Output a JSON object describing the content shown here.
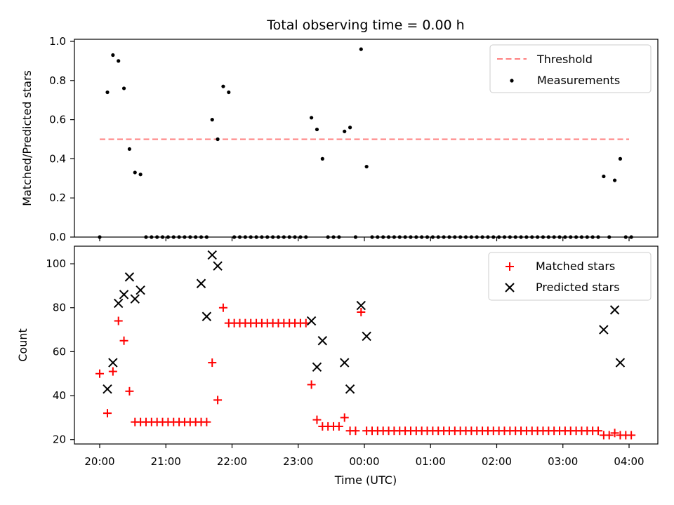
{
  "chart_data": [
    {
      "type": "scatter",
      "title": "Total observing time = 0.00 h",
      "xlabel": "",
      "ylabel": "Matched/Predicted stars",
      "ylim": [
        0,
        1.0
      ],
      "yticks": [
        "0.0",
        "0.2",
        "0.4",
        "0.6",
        "0.8",
        "1.0"
      ],
      "legend_position": "top-right",
      "threshold": {
        "name": "Threshold",
        "value": 0.5,
        "x_range": [
          "20:00",
          "04:00"
        ],
        "color": "#ff7f7f",
        "style": "dashed"
      },
      "series": [
        {
          "name": "Measurements",
          "color": "#000000",
          "x": [
            "20:00",
            "20:07",
            "20:12",
            "20:17",
            "20:22",
            "20:27",
            "20:32",
            "20:37",
            "20:42",
            "20:47",
            "20:52",
            "20:57",
            "21:02",
            "21:07",
            "21:12",
            "21:17",
            "21:22",
            "21:27",
            "21:32",
            "21:37",
            "21:42",
            "21:47",
            "21:52",
            "21:57",
            "22:02",
            "22:07",
            "22:12",
            "22:17",
            "22:22",
            "22:27",
            "22:32",
            "22:37",
            "22:42",
            "22:47",
            "22:52",
            "22:57",
            "23:02",
            "23:07",
            "23:12",
            "23:17",
            "23:22",
            "23:27",
            "23:32",
            "23:37",
            "23:42",
            "23:47",
            "23:52",
            "23:57",
            "00:02",
            "00:07",
            "00:12",
            "00:17",
            "00:22",
            "00:27",
            "00:32",
            "00:37",
            "00:42",
            "00:47",
            "00:52",
            "00:57",
            "01:02",
            "01:07",
            "01:12",
            "01:17",
            "01:22",
            "01:27",
            "01:32",
            "01:37",
            "01:42",
            "01:47",
            "01:52",
            "01:57",
            "02:02",
            "02:07",
            "02:12",
            "02:17",
            "02:22",
            "02:27",
            "02:32",
            "02:37",
            "02:42",
            "02:47",
            "02:52",
            "02:57",
            "03:02",
            "03:07",
            "03:12",
            "03:17",
            "03:22",
            "03:27",
            "03:32",
            "03:37",
            "03:42",
            "03:47",
            "03:52",
            "03:57",
            "04:02"
          ],
          "y": [
            0.0,
            0.74,
            0.93,
            0.9,
            0.76,
            0.45,
            0.33,
            0.32,
            0.0,
            0.0,
            0.0,
            0.0,
            0.0,
            0.0,
            0.0,
            0.0,
            0.0,
            0.0,
            0.0,
            0.0,
            0.6,
            0.5,
            0.77,
            0.74,
            0.0,
            0.0,
            0.0,
            0.0,
            0.0,
            0.0,
            0.0,
            0.0,
            0.0,
            0.0,
            0.0,
            0.0,
            0.0,
            0.0,
            0.61,
            0.55,
            0.4,
            0.0,
            0.0,
            0.0,
            0.54,
            0.56,
            0.0,
            0.96,
            0.36,
            0.0,
            0.0,
            0.0,
            0.0,
            0.0,
            0.0,
            0.0,
            0.0,
            0.0,
            0.0,
            0.0,
            0.0,
            0.0,
            0.0,
            0.0,
            0.0,
            0.0,
            0.0,
            0.0,
            0.0,
            0.0,
            0.0,
            0.0,
            0.0,
            0.0,
            0.0,
            0.0,
            0.0,
            0.0,
            0.0,
            0.0,
            0.0,
            0.0,
            0.0,
            0.0,
            0.0,
            0.0,
            0.0,
            0.0,
            0.0,
            0.0,
            0.0,
            0.31,
            0.0,
            0.29,
            0.4,
            0.0,
            0.0
          ]
        }
      ]
    },
    {
      "type": "scatter",
      "title": "",
      "xlabel": "Time (UTC)",
      "ylabel": "Count",
      "ylim": [
        18,
        108
      ],
      "yticks": [
        "20",
        "40",
        "60",
        "80",
        "100"
      ],
      "xticks": [
        "20:00",
        "21:00",
        "22:00",
        "23:00",
        "00:00",
        "01:00",
        "02:00",
        "03:00",
        "04:00"
      ],
      "legend_position": "top-right",
      "series": [
        {
          "name": "Matched stars",
          "color": "#ff0000",
          "marker": "+",
          "x": [
            "20:00",
            "20:07",
            "20:12",
            "20:17",
            "20:22",
            "20:27",
            "20:32",
            "20:37",
            "20:42",
            "20:47",
            "20:52",
            "20:57",
            "21:02",
            "21:07",
            "21:12",
            "21:17",
            "21:22",
            "21:27",
            "21:32",
            "21:37",
            "21:42",
            "21:47",
            "21:52",
            "21:57",
            "22:02",
            "22:07",
            "22:12",
            "22:17",
            "22:22",
            "22:27",
            "22:32",
            "22:37",
            "22:42",
            "22:47",
            "22:52",
            "22:57",
            "23:02",
            "23:07",
            "23:12",
            "23:17",
            "23:22",
            "23:27",
            "23:32",
            "23:37",
            "23:42",
            "23:47",
            "23:52",
            "23:57",
            "00:02",
            "00:07",
            "00:12",
            "00:17",
            "00:22",
            "00:27",
            "00:32",
            "00:37",
            "00:42",
            "00:47",
            "00:52",
            "00:57",
            "01:02",
            "01:07",
            "01:12",
            "01:17",
            "01:22",
            "01:27",
            "01:32",
            "01:37",
            "01:42",
            "01:47",
            "01:52",
            "01:57",
            "02:02",
            "02:07",
            "02:12",
            "02:17",
            "02:22",
            "02:27",
            "02:32",
            "02:37",
            "02:42",
            "02:47",
            "02:52",
            "02:57",
            "03:02",
            "03:07",
            "03:12",
            "03:17",
            "03:22",
            "03:27",
            "03:32",
            "03:37",
            "03:42",
            "03:47",
            "03:52",
            "03:57",
            "04:02"
          ],
          "y": [
            50,
            32,
            51,
            74,
            65,
            42,
            28,
            28,
            28,
            28,
            28,
            28,
            28,
            28,
            28,
            28,
            28,
            28,
            28,
            28,
            55,
            38,
            80,
            73,
            73,
            73,
            73,
            73,
            73,
            73,
            73,
            73,
            73,
            73,
            73,
            73,
            73,
            73,
            45,
            29,
            26,
            26,
            26,
            26,
            30,
            24,
            24,
            78,
            24,
            24,
            24,
            24,
            24,
            24,
            24,
            24,
            24,
            24,
            24,
            24,
            24,
            24,
            24,
            24,
            24,
            24,
            24,
            24,
            24,
            24,
            24,
            24,
            24,
            24,
            24,
            24,
            24,
            24,
            24,
            24,
            24,
            24,
            24,
            24,
            24,
            24,
            24,
            24,
            24,
            24,
            24,
            22,
            22,
            23,
            22,
            22,
            22
          ]
        },
        {
          "name": "Predicted stars",
          "color": "#000000",
          "marker": "x",
          "x": [
            "20:07",
            "20:12",
            "20:17",
            "20:22",
            "20:27",
            "20:32",
            "20:37",
            "21:32",
            "21:37",
            "21:42",
            "21:47",
            "23:12",
            "23:17",
            "23:22",
            "23:42",
            "23:47",
            "23:57",
            "00:02",
            "03:37",
            "03:47",
            "03:52"
          ],
          "y": [
            43,
            55,
            82,
            86,
            94,
            84,
            88,
            91,
            76,
            104,
            99,
            74,
            53,
            65,
            55,
            43,
            81,
            67,
            70,
            79,
            55
          ]
        }
      ]
    }
  ]
}
